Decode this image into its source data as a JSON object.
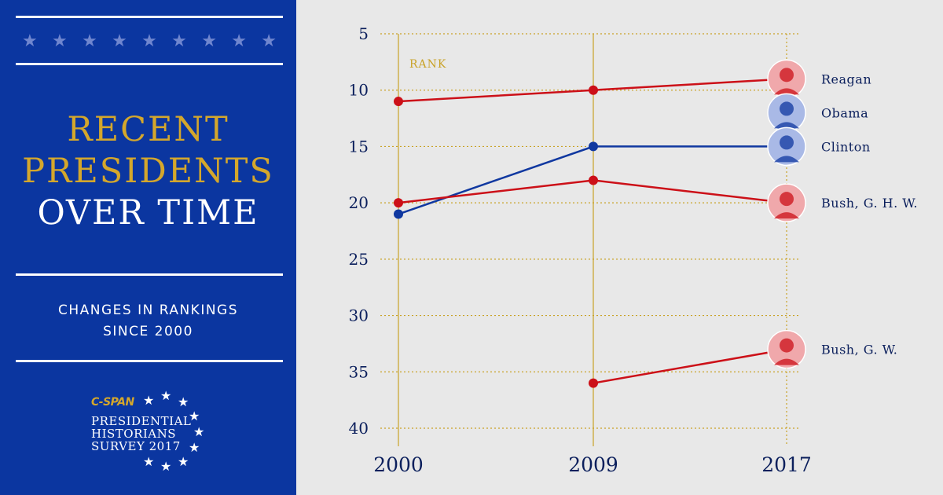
{
  "left_panel": {
    "title_lines": [
      "RECENT",
      "PRESIDENTS",
      "OVER TIME"
    ],
    "subtitle_lines": [
      "CHANGES IN RANKINGS",
      "SINCE 2000"
    ],
    "logo": {
      "brand": "C-SPAN",
      "lines": [
        "PRESIDENTIAL",
        "HISTORIANS",
        "SURVEY 2017"
      ]
    },
    "colors": {
      "panel": "#0b36a0",
      "gold": "#d4a72c",
      "white": "#ffffff"
    }
  },
  "chart_data": {
    "type": "line",
    "title": "",
    "xlabel": "",
    "ylabel": "RANK",
    "x": [
      "2000",
      "2009",
      "2017"
    ],
    "y_ticks": [
      5,
      10,
      15,
      20,
      25,
      30,
      35,
      40
    ],
    "ylim": [
      5,
      40
    ],
    "y_inverted": true,
    "grid": true,
    "series": [
      {
        "name": "Reagan",
        "values": [
          11,
          10,
          9
        ],
        "color": "#cc1018",
        "icon": "reagan-portrait-icon"
      },
      {
        "name": "Obama",
        "values": [
          null,
          null,
          12
        ],
        "color": "#1038a0",
        "icon": "obama-portrait-icon"
      },
      {
        "name": "Clinton",
        "values": [
          21,
          15,
          15
        ],
        "color": "#1038a0",
        "icon": "clinton-portrait-icon"
      },
      {
        "name": "Bush, G. H. W.",
        "values": [
          20,
          18,
          20
        ],
        "color": "#cc1018",
        "icon": "bush-ghw-portrait-icon"
      },
      {
        "name": "Bush, G. W.",
        "values": [
          null,
          36,
          33
        ],
        "color": "#cc1018",
        "icon": "bush-gw-portrait-icon"
      }
    ]
  }
}
